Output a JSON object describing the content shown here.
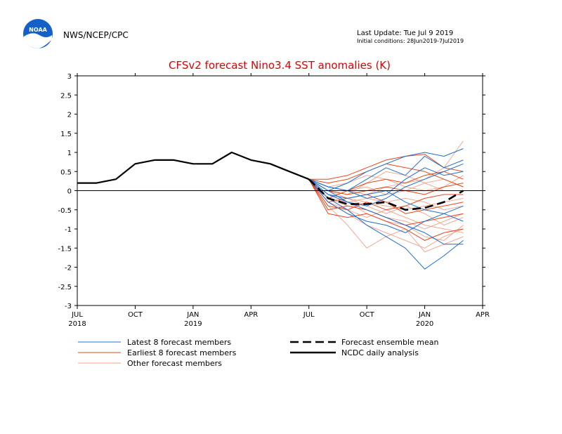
{
  "header": {
    "agency": "NWS/NCEP/CPC",
    "logo_text": "NOAA",
    "last_update": "Last Update: Tue Jul  9 2019",
    "initial_conditions": "Initial conditions: 28Jun2019-7Jul2019"
  },
  "colors": {
    "latest": "#1f6fd1",
    "earlier": "#e8481c",
    "other": "#f0a08a",
    "mean": "#000000",
    "analysis": "#000000",
    "title": "#e00000",
    "logo_blue": "#1560c8"
  },
  "chart_data": {
    "type": "line",
    "title": "CFSv2 forecast Nino3.4 SST anomalies (K)",
    "ylim": [
      -3,
      3
    ],
    "yticks": [
      3,
      2.5,
      2,
      1.5,
      1,
      0.5,
      0,
      -0.5,
      -1,
      -1.5,
      -2,
      -2.5,
      -3
    ],
    "ytick_labels": [
      "3",
      "2.5",
      "2",
      "1.5",
      "1",
      "0.5",
      "0",
      "-0.5",
      "-1",
      "-1.5",
      "-2",
      "-2.5",
      "-3"
    ],
    "xlim": [
      "2018-07",
      "2020-04"
    ],
    "xticks": [
      {
        "x": "2018-07",
        "label": "JUL",
        "year": "2018"
      },
      {
        "x": "2018-10",
        "label": "OCT",
        "year": ""
      },
      {
        "x": "2019-01",
        "label": "JAN",
        "year": "2019"
      },
      {
        "x": "2019-04",
        "label": "APR",
        "year": ""
      },
      {
        "x": "2019-07",
        "label": "JUL",
        "year": ""
      },
      {
        "x": "2019-10",
        "label": "OCT",
        "year": ""
      },
      {
        "x": "2020-01",
        "label": "JAN",
        "year": "2020"
      },
      {
        "x": "2020-04",
        "label": "APR",
        "year": ""
      }
    ],
    "legend": [
      {
        "label": "Latest 8 forecast members",
        "style": "latest"
      },
      {
        "label": "Earliest 8 forecast members",
        "style": "earlier"
      },
      {
        "label": "Other forecast members",
        "style": "other"
      },
      {
        "label": "Forecast ensemble mean",
        "style": "mean"
      },
      {
        "label": "NCDC daily analysis",
        "style": "analysis"
      }
    ],
    "forecast_x": [
      "2019-07",
      "2019-08",
      "2019-09",
      "2019-10",
      "2019-11",
      "2019-12",
      "2020-01",
      "2020-02",
      "2020-03"
    ],
    "series": [
      {
        "style": "analysis",
        "x": [
          "2018-07",
          "2018-08",
          "2018-09",
          "2018-10",
          "2018-11",
          "2018-12",
          "2019-01",
          "2019-02",
          "2019-03",
          "2019-04",
          "2019-05",
          "2019-06",
          "2019-07"
        ],
        "values": [
          0.2,
          0.2,
          0.3,
          0.7,
          0.8,
          0.8,
          0.7,
          0.7,
          1.0,
          0.8,
          0.7,
          0.5,
          0.3
        ]
      },
      {
        "style": "mean",
        "values": [
          0.3,
          -0.2,
          -0.35,
          -0.35,
          -0.3,
          -0.5,
          -0.45,
          -0.3,
          0.0
        ]
      },
      {
        "style": "latest",
        "values": [
          0.3,
          0.0,
          0.2,
          0.5,
          0.7,
          0.9,
          1.0,
          0.9,
          1.1
        ]
      },
      {
        "style": "latest",
        "values": [
          0.3,
          0.1,
          0.0,
          0.3,
          0.6,
          0.4,
          0.9,
          0.6,
          0.8
        ]
      },
      {
        "style": "latest",
        "values": [
          0.3,
          -0.1,
          -0.3,
          -0.4,
          -0.2,
          0.1,
          0.3,
          0.5,
          0.7
        ]
      },
      {
        "style": "latest",
        "values": [
          0.3,
          -0.3,
          -0.6,
          -0.8,
          -0.9,
          -1.1,
          -0.8,
          -0.6,
          -0.4
        ]
      },
      {
        "style": "latest",
        "values": [
          0.3,
          -0.2,
          -0.5,
          -0.9,
          -1.2,
          -1.5,
          -2.05,
          -1.7,
          -1.3
        ]
      },
      {
        "style": "latest",
        "values": [
          0.3,
          0.0,
          -0.3,
          -0.5,
          -0.7,
          -0.9,
          -1.1,
          -1.4,
          -1.4
        ]
      },
      {
        "style": "latest",
        "values": [
          0.3,
          -0.1,
          -0.2,
          -0.1,
          0.0,
          -0.3,
          -0.5,
          -0.6,
          -0.8
        ]
      },
      {
        "style": "latest",
        "values": [
          0.3,
          0.1,
          0.0,
          -0.2,
          -0.1,
          0.3,
          0.6,
          0.4,
          0.5
        ]
      },
      {
        "style": "earlier",
        "values": [
          0.3,
          0.3,
          0.4,
          0.6,
          0.8,
          0.9,
          0.95,
          0.6,
          0.5
        ]
      },
      {
        "style": "earlier",
        "values": [
          0.3,
          0.2,
          0.3,
          0.5,
          0.7,
          0.6,
          0.5,
          0.3,
          0.1
        ]
      },
      {
        "style": "earlier",
        "values": [
          0.3,
          -0.2,
          0.0,
          0.2,
          0.3,
          0.2,
          0.4,
          0.5,
          0.3
        ]
      },
      {
        "style": "earlier",
        "values": [
          0.3,
          -0.4,
          -0.5,
          -0.3,
          -0.5,
          -0.4,
          -0.2,
          -0.1,
          -0.1
        ]
      },
      {
        "style": "earlier",
        "values": [
          0.3,
          -0.6,
          -0.7,
          -0.6,
          -0.8,
          -1.0,
          -1.3,
          -1.1,
          -1.0
        ]
      },
      {
        "style": "earlier",
        "values": [
          0.3,
          -0.5,
          -0.4,
          -0.5,
          -0.7,
          -0.9,
          -0.8,
          -0.7,
          -0.6
        ]
      },
      {
        "style": "earlier",
        "values": [
          0.3,
          0.0,
          -0.1,
          0.0,
          0.1,
          0.0,
          -0.1,
          0.1,
          0.2
        ]
      },
      {
        "style": "earlier",
        "values": [
          0.3,
          -0.3,
          -0.2,
          -0.1,
          -0.3,
          -0.6,
          -0.5,
          -0.4,
          -0.3
        ]
      },
      {
        "style": "other",
        "values": [
          0.3,
          -0.4,
          -0.9,
          -1.5,
          -1.2,
          -1.0,
          -1.6,
          -1.4,
          -1.2
        ]
      },
      {
        "style": "other",
        "values": [
          0.3,
          -0.3,
          -0.6,
          -0.9,
          -1.1,
          -1.3,
          -1.5,
          -1.2,
          -1.0
        ]
      },
      {
        "style": "other",
        "values": [
          0.3,
          -0.2,
          -0.4,
          -0.5,
          -0.7,
          -0.8,
          -1.0,
          -0.8,
          -0.6
        ]
      },
      {
        "style": "other",
        "values": [
          0.3,
          -0.1,
          -0.2,
          -0.3,
          -0.4,
          -0.5,
          -0.4,
          -0.3,
          -0.2
        ]
      },
      {
        "style": "other",
        "values": [
          0.3,
          0.0,
          0.0,
          -0.1,
          0.1,
          0.2,
          0.3,
          0.6,
          1.3
        ]
      },
      {
        "style": "other",
        "values": [
          0.3,
          0.1,
          0.2,
          0.4,
          0.3,
          0.1,
          0.0,
          0.1,
          0.4
        ]
      },
      {
        "style": "other",
        "values": [
          0.3,
          -0.2,
          -0.3,
          -0.6,
          -0.8,
          -0.9,
          -1.2,
          -1.3,
          -0.9
        ]
      },
      {
        "style": "other",
        "values": [
          0.3,
          0.0,
          -0.2,
          -0.4,
          -0.6,
          -0.4,
          -0.6,
          -0.9,
          -0.7
        ]
      },
      {
        "style": "other",
        "values": [
          0.3,
          -0.3,
          -0.5,
          -0.7,
          -0.5,
          -0.7,
          -0.9,
          -1.0,
          -1.1
        ]
      },
      {
        "style": "other",
        "values": [
          0.3,
          0.1,
          0.0,
          0.1,
          -0.1,
          0.0,
          0.2,
          0.3,
          0.1
        ]
      },
      {
        "style": "other",
        "values": [
          0.3,
          -0.1,
          -0.3,
          -0.2,
          -0.3,
          -0.2,
          -0.3,
          -0.5,
          -0.4
        ]
      },
      {
        "style": "other",
        "values": [
          0.3,
          0.0,
          -0.1,
          0.2,
          0.5,
          0.4,
          0.2,
          0.0,
          0.0
        ]
      }
    ]
  }
}
